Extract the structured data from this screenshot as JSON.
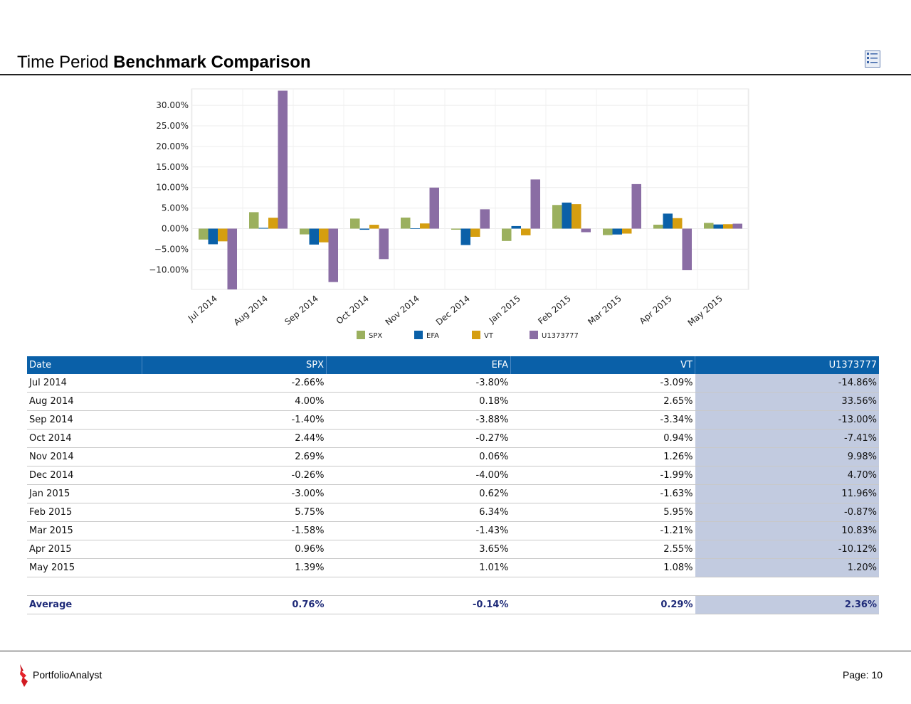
{
  "header": {
    "title_light": "Time Period ",
    "title_bold": "Benchmark Comparison",
    "report_icon": "report-document-icon"
  },
  "chart_data": {
    "type": "bar",
    "categories": [
      "Jul 2014",
      "Aug 2014",
      "Sep 2014",
      "Oct 2014",
      "Nov 2014",
      "Dec 2014",
      "Jan 2015",
      "Feb 2015",
      "Mar 2015",
      "Apr 2015",
      "May 2015"
    ],
    "series": [
      {
        "name": "SPX",
        "color": "#9bb05e",
        "values": [
          -2.66,
          4.0,
          -1.4,
          2.44,
          2.69,
          -0.26,
          -3.0,
          5.75,
          -1.58,
          0.96,
          1.39
        ]
      },
      {
        "name": "EFA",
        "color": "#0a60a8",
        "values": [
          -3.8,
          0.18,
          -3.88,
          -0.27,
          0.06,
          -4.0,
          0.62,
          6.34,
          -1.43,
          3.65,
          1.01
        ]
      },
      {
        "name": "VT",
        "color": "#d59e10",
        "values": [
          -3.09,
          2.65,
          -3.34,
          0.94,
          1.26,
          -1.99,
          -1.63,
          5.95,
          -1.21,
          2.55,
          1.08
        ]
      },
      {
        "name": "U1373777",
        "color": "#8a6da4",
        "values": [
          -14.86,
          33.56,
          -13.0,
          -7.41,
          9.98,
          4.7,
          11.96,
          -0.87,
          10.83,
          -10.12,
          1.2
        ]
      }
    ],
    "yticks": [
      30,
      25,
      20,
      15,
      10,
      5,
      0,
      -5,
      -10
    ],
    "ytick_labels": [
      "30.00%",
      "25.00%",
      "20.00%",
      "15.00%",
      "10.00%",
      "5.00%",
      "0.00%",
      "−10.00%"
    ],
    "ytick_labels_full": [
      "30.00%",
      "25.00%",
      "20.00%",
      "15.00%",
      "10.00%",
      "5.00%",
      "0.00%",
      "−5.00%",
      "−10.00%"
    ],
    "ylim": [
      -14.86,
      33.56
    ],
    "grid": true,
    "legend_position": "bottom"
  },
  "table": {
    "headers": [
      "Date",
      "SPX",
      "EFA",
      "VT",
      "U1373777"
    ],
    "rows": [
      [
        "Jul 2014",
        "-2.66%",
        "-3.80%",
        "-3.09%",
        "-14.86%"
      ],
      [
        "Aug 2014",
        "4.00%",
        "0.18%",
        "2.65%",
        "33.56%"
      ],
      [
        "Sep 2014",
        "-1.40%",
        "-3.88%",
        "-3.34%",
        "-13.00%"
      ],
      [
        "Oct 2014",
        "2.44%",
        "-0.27%",
        "0.94%",
        "-7.41%"
      ],
      [
        "Nov 2014",
        "2.69%",
        "0.06%",
        "1.26%",
        "9.98%"
      ],
      [
        "Dec 2014",
        "-0.26%",
        "-4.00%",
        "-1.99%",
        "4.70%"
      ],
      [
        "Jan 2015",
        "-3.00%",
        "0.62%",
        "-1.63%",
        "11.96%"
      ],
      [
        "Feb 2015",
        "5.75%",
        "6.34%",
        "5.95%",
        "-0.87%"
      ],
      [
        "Mar 2015",
        "-1.58%",
        "-1.43%",
        "-1.21%",
        "10.83%"
      ],
      [
        "Apr 2015",
        "0.96%",
        "3.65%",
        "2.55%",
        "-10.12%"
      ],
      [
        "May 2015",
        "1.39%",
        "1.01%",
        "1.08%",
        "1.20%"
      ]
    ],
    "average": [
      "Average",
      "0.76%",
      "-0.14%",
      "0.29%",
      "2.36%"
    ]
  },
  "footer": {
    "brand": "PortfolioAnalyst",
    "page": "Page: 10",
    "logo_icon": "portfolioanalyst-logo-icon"
  }
}
